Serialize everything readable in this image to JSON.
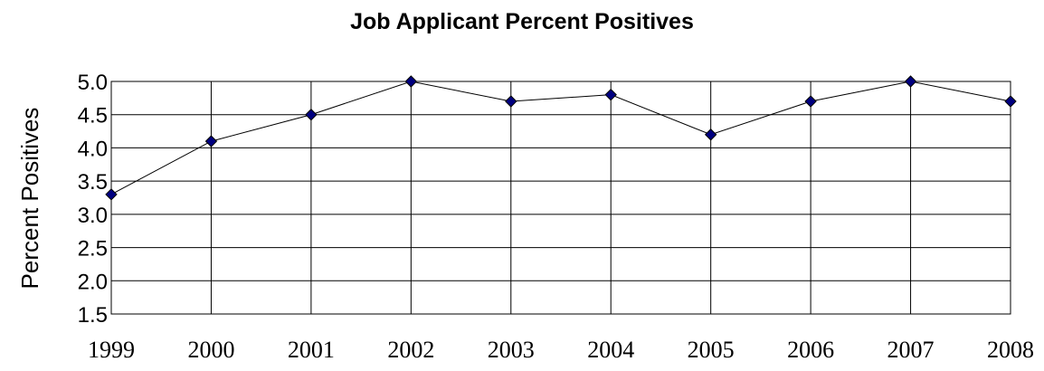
{
  "chart_data": {
    "type": "line",
    "title": "Job Applicant Percent Positives",
    "xlabel": "",
    "ylabel": "Percent Positives",
    "categories": [
      "1999",
      "2000",
      "2001",
      "2002",
      "2003",
      "2004",
      "2005",
      "2006",
      "2007",
      "2008"
    ],
    "series": [
      {
        "values": [
          3.3,
          4.1,
          4.5,
          5.0,
          4.7,
          4.8,
          4.2,
          4.7,
          5.0,
          4.7
        ]
      }
    ],
    "ylim": [
      1.5,
      5.0
    ],
    "yticks": [
      "1.5",
      "2.0",
      "2.5",
      "3.0",
      "3.5",
      "4.0",
      "4.5",
      "5.0"
    ],
    "grid": true,
    "legend": "none",
    "colors": {
      "line": "#000000",
      "marker_fill": "#000080",
      "marker_stroke": "#000000",
      "grid": "#000000"
    }
  }
}
